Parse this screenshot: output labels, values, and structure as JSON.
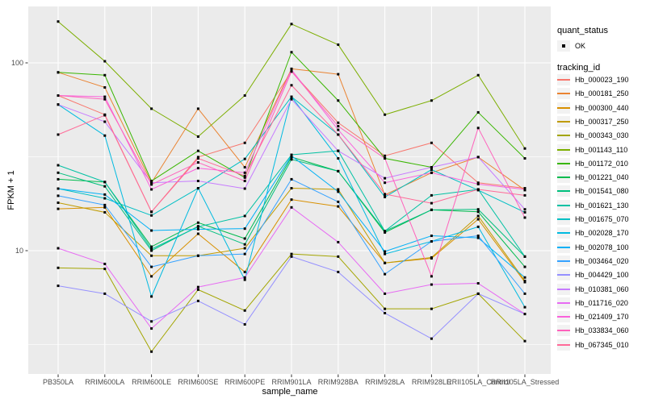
{
  "axes": {
    "x_title": "sample_name",
    "y_title": "FPKM + 1",
    "y_tick_labels": [
      "100",
      "10"
    ],
    "tick_text_color": "#4D4D4D",
    "tick_mark_color": "#333333"
  },
  "legend": {
    "quant_status_title": "quant_status",
    "quant_status_items": [
      {
        "label": "OK",
        "marker": "point",
        "color": "#000000"
      }
    ],
    "tracking_id_title": "tracking_id",
    "key_bg": "#F2F2F2"
  },
  "chart_data": {
    "type": "line",
    "title": "",
    "xlabel": "sample_name",
    "ylabel": "FPKM + 1",
    "x_categories": [
      "PB350LA",
      "RRIM600LA",
      "RRIM600LE",
      "RRIM600SE",
      "RRIM600PE",
      "RRIM901LA",
      "RRIM928BA",
      "RRIM928LA",
      "RRIM928LE",
      "RRII105LA_Control",
      "RRII105LA_Stressed"
    ],
    "y_scale": "log10",
    "y_major_ticks": [
      100,
      10
    ],
    "y_minor_ticks": [
      31.6,
      3.16
    ],
    "ylim": [
      2.2,
      196
    ],
    "grid": true,
    "legend_position": "right",
    "panel_bg": "#EBEBEB",
    "grid_color": "#FFFFFF",
    "marker_color": "#000000",
    "series": [
      {
        "name": "Hb_000023_190",
        "color": "#F8766D",
        "values": [
          67,
          53,
          16.1,
          31.5,
          37.5,
          90,
          48,
          32,
          37.5,
          23,
          21.5
        ]
      },
      {
        "name": "Hb_000181_250",
        "color": "#EA8331",
        "values": [
          89,
          74,
          23,
          57,
          27.8,
          93,
          87,
          19.8,
          26,
          31.5,
          21
        ]
      },
      {
        "name": "Hb_000300_440",
        "color": "#D89000",
        "values": [
          16.7,
          17,
          7.3,
          12.3,
          7.7,
          18.7,
          17.2,
          8.6,
          9.1,
          14.7,
          6.8
        ]
      },
      {
        "name": "Hb_000317_250",
        "color": "#C09B00",
        "values": [
          18,
          16,
          9.4,
          9.4,
          10.3,
          21.5,
          21.2,
          8.6,
          9.2,
          15.3,
          6.9
        ]
      },
      {
        "name": "Hb_000343_030",
        "color": "#A3A500",
        "values": [
          8.1,
          8,
          2.9,
          6.2,
          4.8,
          9.6,
          9.3,
          4.9,
          4.9,
          5.9,
          3.3
        ]
      },
      {
        "name": "Hb_001143_110",
        "color": "#7CAE00",
        "values": [
          166,
          102,
          57,
          40.5,
          67,
          161,
          125,
          53,
          63,
          86,
          35
        ]
      },
      {
        "name": "Hb_001172_010",
        "color": "#39B600",
        "values": [
          89,
          86,
          23.5,
          34,
          24.5,
          114,
          63,
          31,
          27.8,
          54.5,
          31
        ]
      },
      {
        "name": "Hb_001221_040",
        "color": "#00BB4E",
        "values": [
          24,
          23.2,
          10.5,
          14.1,
          11.6,
          31.5,
          26.5,
          12.5,
          16.5,
          16.1,
          8.2
        ]
      },
      {
        "name": "Hb_001541_080",
        "color": "#00BF7D",
        "values": [
          26,
          22,
          10,
          13.5,
          10.8,
          30.6,
          26.5,
          12.7,
          16.5,
          16.6,
          9.3
        ]
      },
      {
        "name": "Hb_001621_130",
        "color": "#00C1A3",
        "values": [
          28.5,
          23.2,
          10.2,
          13.4,
          15.3,
          32.4,
          34,
          12.7,
          19.7,
          21.2,
          9.3
        ]
      },
      {
        "name": "Hb_001675_070",
        "color": "#00BFC4",
        "values": [
          21.4,
          19,
          15.4,
          21.5,
          30.8,
          66,
          41.5,
          19.3,
          27,
          21,
          16
        ]
      },
      {
        "name": "Hb_002028_170",
        "color": "#00BAE0",
        "values": [
          60,
          41,
          5.7,
          21.5,
          7,
          66,
          31,
          9.6,
          11.2,
          13.4,
          5
        ]
      },
      {
        "name": "Hb_002078_100",
        "color": "#00B0F6",
        "values": [
          21.4,
          19.9,
          12.8,
          13,
          13.1,
          32,
          20.6,
          9.9,
          12,
          11.7,
          7.2
        ]
      },
      {
        "name": "Hb_003464_020",
        "color": "#35A2FF",
        "values": [
          19.6,
          17.5,
          8.2,
          9.4,
          9.6,
          24,
          18.2,
          7.5,
          11.2,
          12,
          5.9
        ]
      },
      {
        "name": "Hb_004429_100",
        "color": "#9590FF",
        "values": [
          6.5,
          5.9,
          4.2,
          5.4,
          4.05,
          9.3,
          7.7,
          4.65,
          3.4,
          5.9,
          4.6
        ]
      },
      {
        "name": "Hb_010381_060",
        "color": "#C77CFF",
        "values": [
          60,
          48.6,
          23,
          23.5,
          21.4,
          64,
          34,
          24.3,
          27.8,
          31.5,
          16.6
        ]
      },
      {
        "name": "Hb_011716_020",
        "color": "#E76BF3",
        "values": [
          10.3,
          8.5,
          3.85,
          6.4,
          7.2,
          17,
          11.1,
          5.9,
          6.6,
          6.7,
          4.6
        ]
      },
      {
        "name": "Hb_021409_170",
        "color": "#FA62DB",
        "values": [
          67,
          66,
          21.2,
          27.5,
          26,
          92,
          44,
          23,
          26,
          22.6,
          21.2
        ]
      },
      {
        "name": "Hb_033834_060",
        "color": "#FF62BC",
        "values": [
          67,
          64,
          22.5,
          29.5,
          23.5,
          90,
          46,
          31,
          7.3,
          45,
          15
        ]
      },
      {
        "name": "Hb_067345_010",
        "color": "#FF6A98",
        "values": [
          41.5,
          52.6,
          16.1,
          31,
          25,
          76,
          41.5,
          20,
          17.9,
          21.2,
          19.7
        ]
      }
    ]
  }
}
